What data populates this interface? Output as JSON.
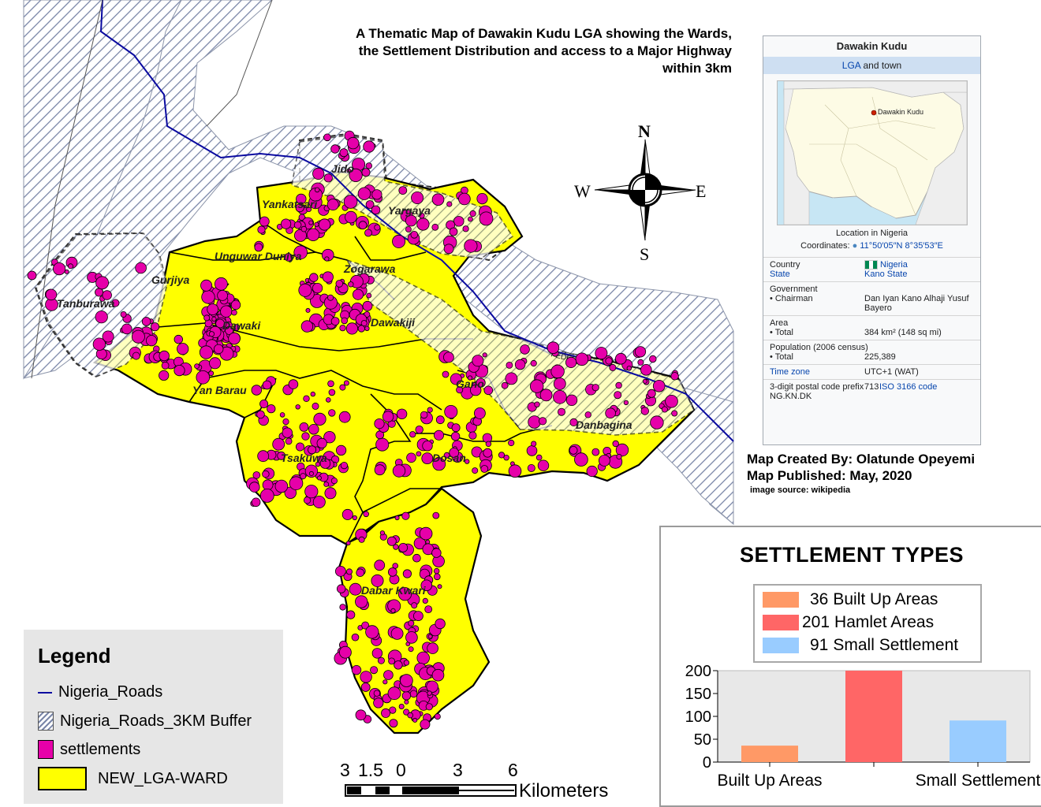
{
  "title": "A Thematic Map of Dawakin Kudu LGA showing the Wards, the Settlement Distribution and access to a Major Highway within 3km",
  "title_lines": [
    "A Thematic Map of Dawakin Kudu LGA showing the Wards,",
    "the Settlement Distribution and access to a Major Highway",
    "within 3km"
  ],
  "wards": [
    "Jido",
    "Yankatsari",
    "Yargaya",
    "Unguwar Duniya",
    "Zogarawa",
    "Gurjiya",
    "Tanburawa",
    "Dawaki",
    "Dawakiji",
    "Yan Barau",
    "Gano",
    "Danbagina",
    "Tsakuwa",
    "Dosan",
    "Dabar Kwari"
  ],
  "road_label": "FEDERA",
  "compass": {
    "n": "N",
    "s": "S",
    "e": "E",
    "w": "W"
  },
  "infobox": {
    "title": "Dawakin Kudu",
    "subtitle_link": "LGA",
    "subtitle_rest": " and town",
    "map_marker_label": "Dawakin Kudu",
    "caption": "Location in Nigeria",
    "coords_label": "Coordinates:",
    "coords_value": "11°50′05″N 8°35′53″E",
    "country_label": "Country",
    "country_value": "Nigeria",
    "state_label": "State",
    "state_value": "Kano State",
    "government_label": "Government",
    "chairman_label": "• Chairman",
    "chairman_value": "Dan Iyan Kano Alhaji Yusuf Bayero",
    "area_label": "Area",
    "area_total_label": "• Total",
    "area_total_value": "384 km² (148 sq mi)",
    "population_label": "Population",
    "population_census": "(2006 census)",
    "population_total_label": "• Total",
    "population_total_value": "225,389",
    "timezone_label": "Time zone",
    "timezone_value": "UTC+1 (WAT)",
    "postal_label": "3-digit postal code prefix",
    "postal_value": "713",
    "iso_label": "ISO 3166 code",
    "iso_value": "NG.KN.DK"
  },
  "credits": {
    "created": "Map Created By: Olatunde Opeyemi",
    "published": "Map Published: May, 2020",
    "source": "image source: wikipedia"
  },
  "legend": {
    "title": "Legend",
    "items": [
      "Nigeria_Roads",
      "Nigeria_Roads_3KM Buffer",
      "settlements",
      "NEW_LGA-WARD"
    ]
  },
  "scale": {
    "labels": [
      "3",
      "1.5",
      "0",
      "3",
      "6"
    ],
    "unit": "Kilometers"
  },
  "colors": {
    "ward_fill": "#ffff00",
    "settlement": "#e600a9",
    "road": "#0a0aa0",
    "buffer_hatch": "#7a86a8",
    "built_up": "#ff9966",
    "hamlet": "#ff6666",
    "small": "#99ccff"
  },
  "settlement_types": {
    "title": "SETTLEMENT TYPES",
    "legend": [
      {
        "count": "36",
        "label": "Built Up Areas"
      },
      {
        "count": "201",
        "label": "Hamlet Areas"
      },
      {
        "count": "91",
        "label": "Small Settlement"
      }
    ]
  },
  "chart_data": {
    "type": "bar",
    "categories": [
      "Built Up Areas",
      "Hamlet Areas",
      "Small Settlement"
    ],
    "x_tick_labels_shown": [
      "Built Up Areas",
      "Small Settlement"
    ],
    "values": [
      36,
      201,
      91
    ],
    "ylim": [
      0,
      200
    ],
    "yticks": [
      0,
      50,
      100,
      150,
      200
    ],
    "grid": false,
    "legend_position": "top"
  }
}
